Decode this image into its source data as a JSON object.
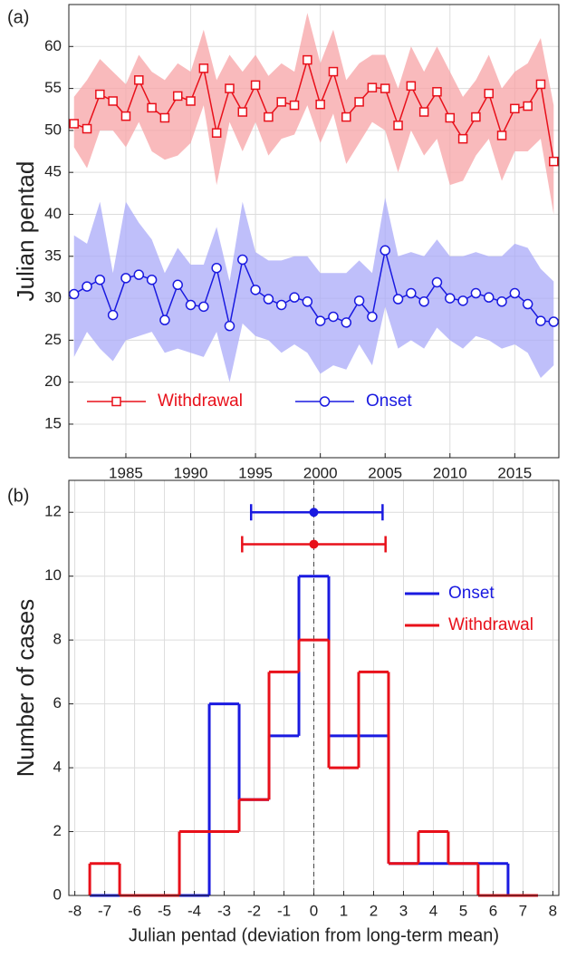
{
  "chart_data": [
    {
      "type": "line",
      "panel_label": "(a)",
      "ylabel": "Julian pentad",
      "x": [
        1981,
        1982,
        1983,
        1984,
        1985,
        1986,
        1987,
        1988,
        1989,
        1990,
        1991,
        1992,
        1993,
        1994,
        1995,
        1996,
        1997,
        1998,
        1999,
        2000,
        2001,
        2002,
        2003,
        2004,
        2005,
        2006,
        2007,
        2008,
        2009,
        2010,
        2011,
        2012,
        2013,
        2014,
        2015,
        2016,
        2017,
        2018
      ],
      "xlim": [
        1980.6,
        2018.4
      ],
      "xticks": [
        1985,
        1990,
        1995,
        2000,
        2005,
        2010,
        2015
      ],
      "ylim": [
        11,
        65
      ],
      "yticks": [
        15,
        20,
        25,
        30,
        35,
        40,
        45,
        50,
        55,
        60
      ],
      "grid": true,
      "legend": "bottom-left",
      "series": [
        {
          "name": "Withdrawal",
          "color": "#e8101a",
          "band_color": "#f7a3a6",
          "marker": "square",
          "values": [
            50.8,
            50.2,
            54.3,
            53.5,
            51.7,
            56.0,
            52.7,
            51.5,
            54.1,
            53.5,
            57.4,
            49.7,
            55.0,
            52.2,
            55.4,
            51.6,
            53.4,
            53.0,
            58.4,
            53.1,
            57.0,
            51.6,
            53.4,
            55.1,
            55.0,
            50.6,
            55.3,
            52.2,
            54.6,
            51.5,
            49.0,
            51.6,
            54.4,
            49.4,
            52.6,
            52.9,
            55.5,
            46.3
          ],
          "upper": [
            54,
            56,
            58.5,
            57,
            55.5,
            59,
            57,
            56,
            58,
            57,
            62,
            56,
            59,
            57,
            59,
            56.5,
            58,
            57,
            64,
            58,
            62,
            56,
            58,
            59,
            59,
            55,
            60,
            57,
            60,
            57,
            54,
            56,
            59,
            55,
            57,
            58,
            61,
            53
          ],
          "lower": [
            48,
            45.5,
            50,
            50,
            48,
            51,
            47.5,
            46.5,
            47,
            48.5,
            53,
            43.5,
            51,
            47.5,
            51,
            47,
            49,
            49.5,
            53,
            48.5,
            52,
            46,
            48.5,
            51,
            50,
            45,
            50,
            47,
            49,
            43.5,
            44,
            47,
            49,
            44,
            47.5,
            47.5,
            49,
            40
          ]
        },
        {
          "name": "Onset",
          "color": "#1a1ae0",
          "band_color": "#aaaaf8",
          "marker": "circle",
          "values": [
            30.5,
            31.4,
            32.2,
            28.0,
            32.4,
            32.8,
            32.2,
            27.4,
            31.6,
            29.2,
            29.0,
            33.6,
            26.7,
            34.6,
            31.0,
            29.9,
            29.2,
            30.1,
            29.6,
            27.3,
            27.8,
            27.1,
            29.7,
            27.8,
            35.7,
            29.9,
            30.6,
            29.6,
            31.9,
            30.0,
            29.7,
            30.6,
            30.1,
            29.6,
            30.6,
            29.3,
            27.3,
            27.2
          ],
          "upper": [
            37.5,
            36.5,
            41.5,
            33,
            41.5,
            39,
            37,
            33,
            36,
            34,
            34,
            38.5,
            32,
            41.5,
            35.5,
            34.5,
            34.5,
            35,
            35,
            33,
            33,
            33,
            34.5,
            33,
            42,
            35,
            35.5,
            35,
            37,
            35,
            35,
            35.5,
            35,
            35,
            36.5,
            36,
            33.5,
            32
          ],
          "lower": [
            23,
            26,
            24,
            22.5,
            25,
            25.5,
            26,
            23.5,
            24,
            23.5,
            23,
            26,
            20,
            27,
            25.5,
            25,
            23.5,
            24.5,
            23.5,
            21,
            22,
            21.5,
            24.5,
            22,
            29,
            24,
            25,
            24,
            26.5,
            25,
            24,
            25.5,
            25,
            24,
            24.5,
            23.5,
            20.5,
            22
          ]
        }
      ]
    },
    {
      "type": "histogram",
      "panel_label": "(b)",
      "xlabel": "Julian pentad (deviation from long-term mean)",
      "ylabel": "Number of cases",
      "bins": [
        -7.5,
        -6.5,
        -5.5,
        -4.5,
        -3.5,
        -2.5,
        -1.5,
        -0.5,
        0.5,
        1.5,
        2.5,
        3.5,
        4.5,
        5.5,
        6.5,
        7.5
      ],
      "xlim": [
        -8.2,
        8.2
      ],
      "xticks": [
        -8,
        -7,
        -6,
        -5,
        -4,
        -3,
        -2,
        -1,
        0,
        1,
        2,
        3,
        4,
        5,
        6,
        7,
        8
      ],
      "ylim": [
        0,
        13
      ],
      "yticks": [
        0,
        2,
        4,
        6,
        8,
        10,
        12
      ],
      "grid": true,
      "legend": "top-right",
      "series": [
        {
          "name": "Onset",
          "color": "#1a1ae0",
          "values": [
            0,
            0,
            0,
            0,
            6,
            3,
            5,
            10,
            5,
            5,
            1,
            1,
            1,
            1,
            0
          ],
          "summary": {
            "y": 12,
            "mean": 0,
            "low": -2.1,
            "high": 2.3
          }
        },
        {
          "name": "Withdrawal",
          "color": "#e8101a",
          "values": [
            1,
            0,
            0,
            2,
            2,
            3,
            7,
            8,
            4,
            7,
            1,
            2,
            1,
            0,
            0
          ],
          "summary": {
            "y": 11,
            "mean": 0,
            "low": -2.4,
            "high": 2.4
          }
        }
      ]
    }
  ]
}
